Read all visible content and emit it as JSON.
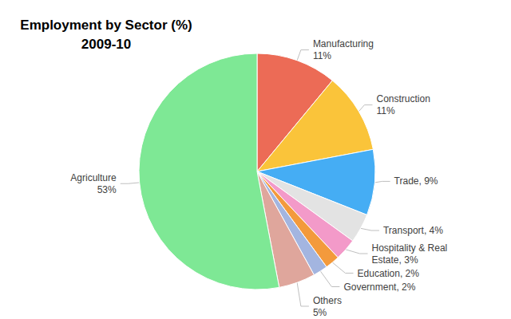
{
  "chart_data": {
    "type": "pie",
    "title": "Employment by Sector (%)\n2009-10",
    "categories": [
      "Manufacturing",
      "Construction",
      "Trade",
      "Transport",
      "Hospitality & Real Estate",
      "Education",
      "Government",
      "Others",
      "Agriculture"
    ],
    "values": [
      11,
      11,
      9,
      4,
      3,
      2,
      2,
      5,
      53
    ],
    "value_labels": [
      "Manufacturing\n11%",
      "Construction\n11%",
      "Trade, 9%",
      "Transport, 4%",
      "Hospitality & Real\nEstate, 3%",
      "Education, 2%",
      "Government, 2%",
      "Others\n5%",
      "Agriculture\n53%"
    ],
    "colors": [
      "#ec6b56",
      "#fac43a",
      "#45adf4",
      "#e3e3e3",
      "#f39ac9",
      "#f39a3c",
      "#a3b5e0",
      "#dfa69c",
      "#7ee895"
    ],
    "data_labels": true
  }
}
